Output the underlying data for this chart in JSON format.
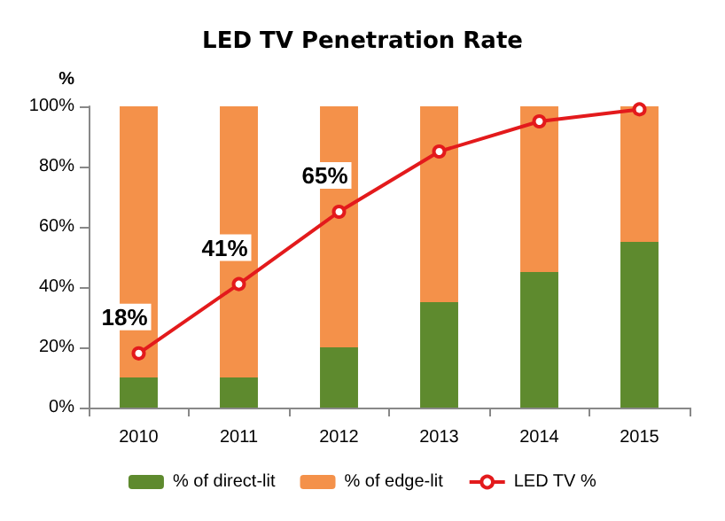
{
  "chart_data": {
    "type": "bar",
    "title": "LED TV Penetration Rate",
    "ylabel": "%",
    "categories": [
      "2010",
      "2011",
      "2012",
      "2013",
      "2014",
      "2015"
    ],
    "stacked": true,
    "series": [
      {
        "name": "% of direct-lit",
        "color": "#5e8a2e",
        "values": [
          10,
          10,
          20,
          35,
          45,
          55
        ]
      },
      {
        "name": "% of edge-lit",
        "color": "#f4914a",
        "values": [
          90,
          90,
          80,
          65,
          55,
          45
        ]
      },
      {
        "name": "LED TV %",
        "type": "line",
        "color": "#e31a1c",
        "values": [
          18,
          41,
          65,
          85,
          95,
          99
        ],
        "value_labels": [
          "18%",
          "41%",
          "65%",
          null,
          null,
          null
        ]
      }
    ],
    "ylim": [
      0,
      100
    ],
    "yticks": [
      {
        "value": 0,
        "label": "0%"
      },
      {
        "value": 20,
        "label": "20%"
      },
      {
        "value": 40,
        "label": "40%"
      },
      {
        "value": 60,
        "label": "60%"
      },
      {
        "value": 80,
        "label": "80%"
      },
      {
        "value": 100,
        "label": "100%"
      }
    ],
    "grid": false,
    "legend": "bottom",
    "marker": "circle"
  }
}
